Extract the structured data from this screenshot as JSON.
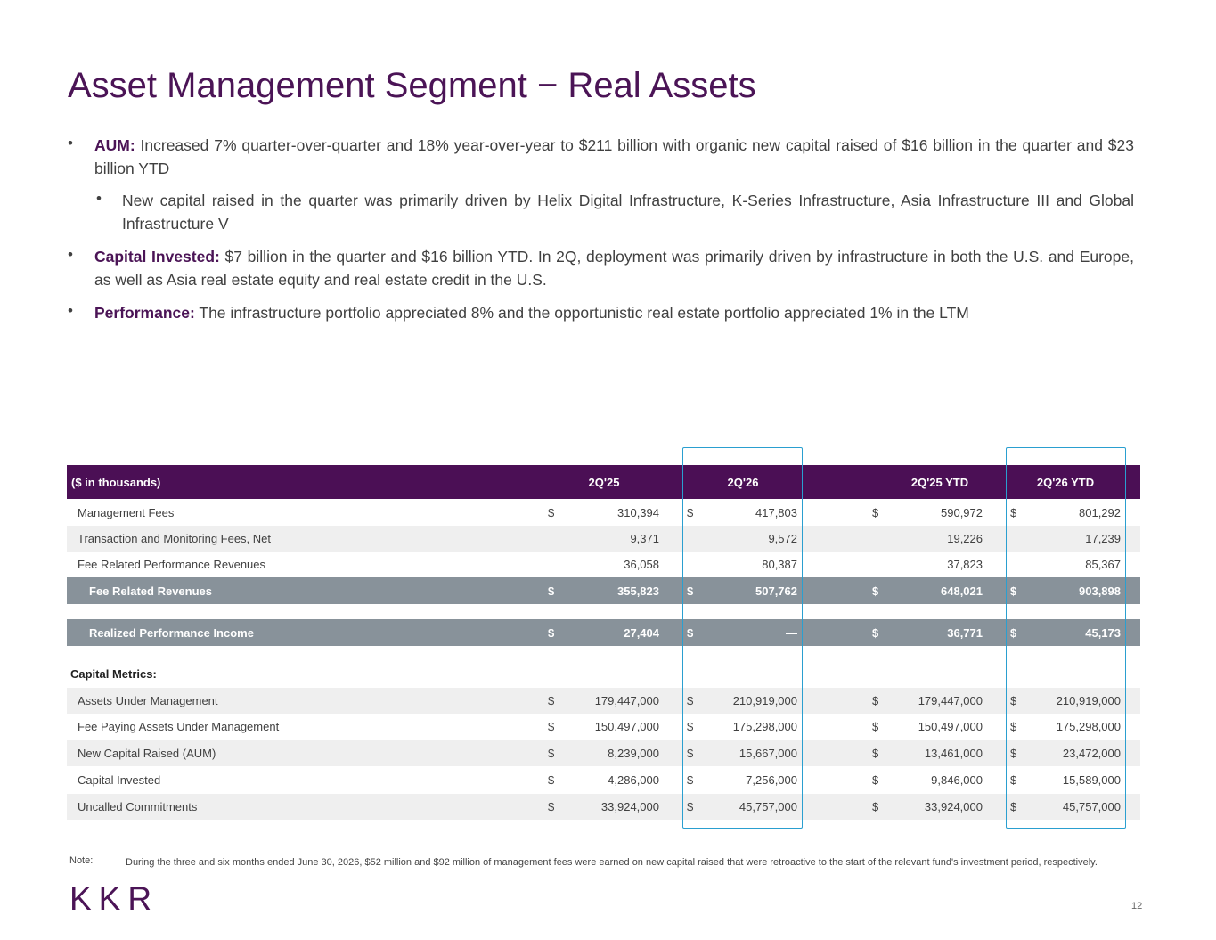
{
  "header": {
    "title": "Asset Management Segment − Real Assets"
  },
  "bullets": [
    {
      "lead": "AUM:",
      "text": " Increased 7% quarter-over-quarter and 18% year-over-year to $211 billion with organic new capital raised of $16 billion in the quarter and $23 billion YTD",
      "sub": [
        "New capital raised in the quarter was primarily driven by Helix Digital Infrastructure, K-Series Infrastructure, Asia Infrastructure III and Global Infrastructure V"
      ]
    },
    {
      "lead": "Capital Invested:",
      "text": " $7 billion in the quarter and $16 billion YTD. In 2Q, deployment was primarily driven by infrastructure in both the U.S. and Europe, as well as Asia real estate equity and real estate credit in the U.S.",
      "sub": []
    },
    {
      "lead": "Performance:",
      "text": " The infrastructure portfolio appreciated 8% and the opportunistic real estate portfolio appreciated 1% in the LTM",
      "sub": []
    }
  ],
  "table": {
    "columns": [
      "($ in thousands)",
      "2Q'25",
      "2Q'26",
      "2Q'25 YTD",
      "2Q'26 YTD"
    ],
    "rows": [
      {
        "label": "Management Fees",
        "currency": "$",
        "cells": [
          "310,394",
          "417,803",
          "590,972",
          "801,292"
        ]
      },
      {
        "label": "Transaction and Monitoring Fees, Net",
        "cells": [
          "9,371",
          "9,572",
          "19,226",
          "17,239"
        ]
      },
      {
        "label": "Fee Related Performance Revenues",
        "cells": [
          "36,058",
          "80,387",
          "37,823",
          "85,367"
        ]
      },
      {
        "label": "Fee Related Revenues",
        "currency": "$",
        "cells": [
          "355,823",
          "507,762",
          "648,021",
          "903,898"
        ]
      },
      {
        "label": "Realized Performance Income",
        "currency": "$",
        "cells": [
          "27,404",
          "—",
          "36,771",
          "45,173"
        ]
      },
      {
        "label": "Capital Metrics:",
        "cells": []
      },
      {
        "label": "Assets Under Management",
        "currency": "$",
        "cells": [
          "179,447,000",
          "210,919,000",
          "179,447,000",
          "210,919,000"
        ]
      },
      {
        "label": "Fee Paying Assets Under Management",
        "currency": "$",
        "cells": [
          "150,497,000",
          "175,298,000",
          "150,497,000",
          "175,298,000"
        ]
      },
      {
        "label": "New Capital Raised (AUM)",
        "currency": "$",
        "cells": [
          "8,239,000",
          "15,667,000",
          "13,461,000",
          "23,472,000"
        ]
      },
      {
        "label": "Capital Invested",
        "currency": "$",
        "cells": [
          "4,286,000",
          "7,256,000",
          "9,846,000",
          "15,589,000"
        ]
      },
      {
        "label": "Uncalled Commitments",
        "currency": "$",
        "cells": [
          "33,924,000",
          "45,757,000",
          "33,924,000",
          "45,757,000"
        ]
      }
    ]
  },
  "note": {
    "label": "Note:",
    "text": "During the three and six months ended June 30, 2026, $52 million and $92 million of management fees were earned on new capital raised that were retroactive to the start of the relevant fund's investment period, respectively."
  },
  "footer": {
    "logo": "KKR",
    "page": "12"
  }
}
